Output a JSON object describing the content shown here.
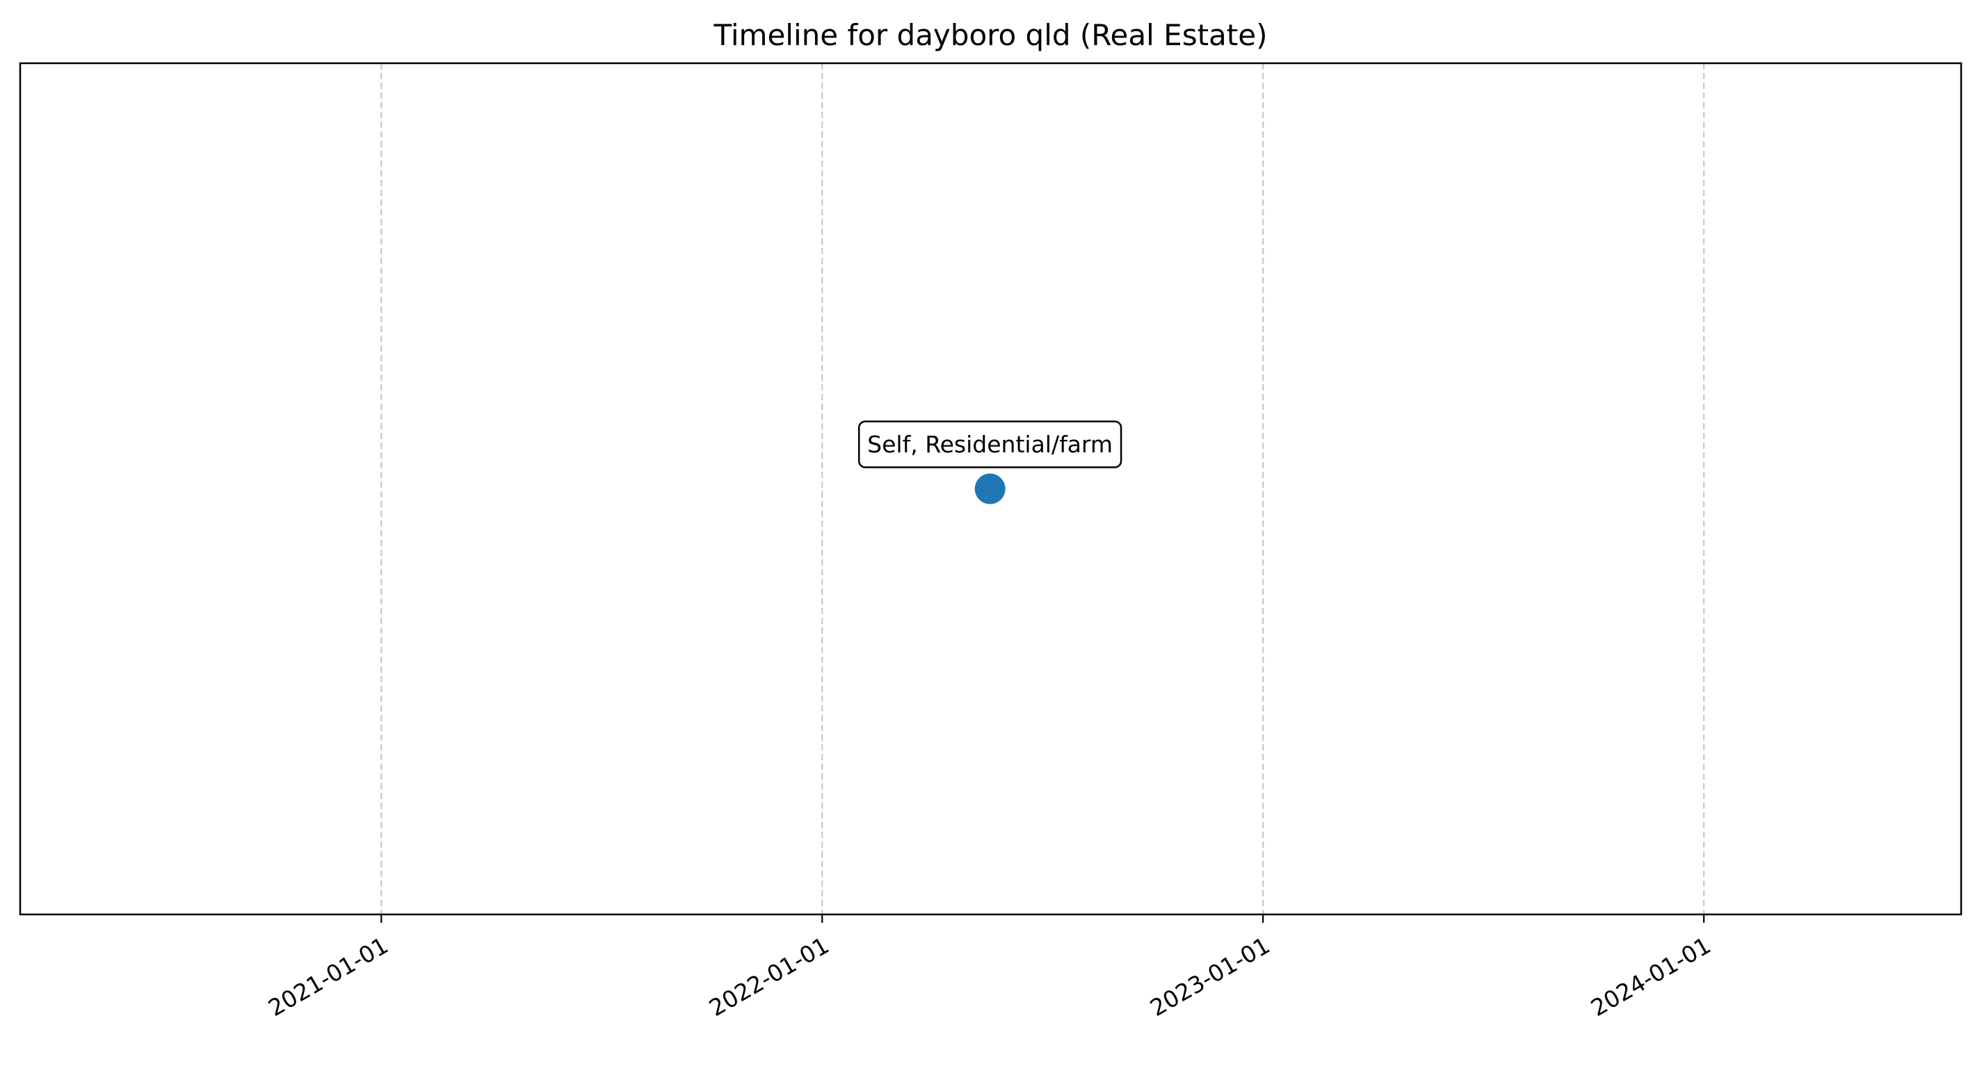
{
  "chart_data": {
    "type": "scatter",
    "title": "Timeline for dayboro qld (Real Estate)",
    "xlabel": "",
    "ylabel": "",
    "x_axis": {
      "scale": "date",
      "range": [
        "2020-03-08",
        "2024-08-01"
      ],
      "ticks": [
        "2021-01-01",
        "2022-01-01",
        "2023-01-01",
        "2024-01-01"
      ],
      "tick_labels": [
        "2021-01-01",
        "2022-01-01",
        "2023-01-01",
        "2024-01-01"
      ],
      "tick_label_rotation_deg": 30
    },
    "y_axis": {
      "visible": false,
      "range": [
        0,
        2
      ]
    },
    "grid": {
      "x": true,
      "y": false,
      "style": "dashed",
      "color": "#c8c8c8"
    },
    "series": [
      {
        "color": "#1f77b4",
        "points": [
          {
            "x": "2022-05-20",
            "y": 1,
            "label": "Self, Residential/farm"
          }
        ]
      }
    ]
  }
}
